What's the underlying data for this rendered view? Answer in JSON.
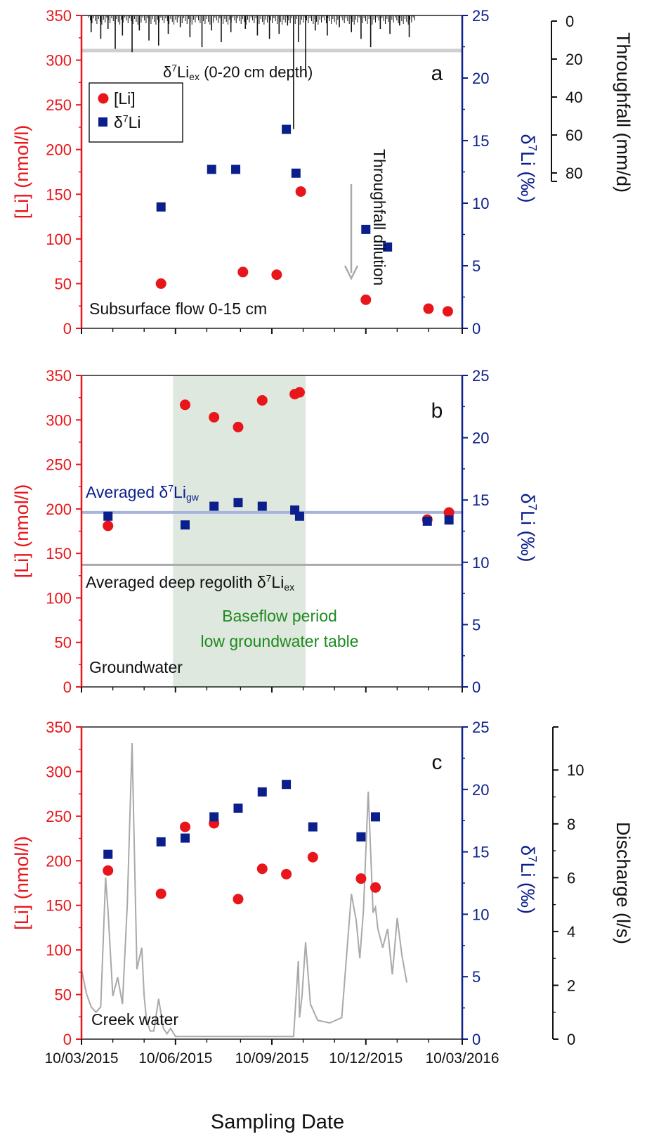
{
  "colors": {
    "li": "#e8161b",
    "d7": "#0b1f8c",
    "black": "#111111",
    "gray": "#a9a9a9",
    "lightgray": "#cfcfcf",
    "blueline": "#a9b4dd",
    "shade": "#dfe8df",
    "green": "#1e8a1e"
  },
  "x_axis": {
    "tick_labels": [
      "10/03/2015",
      "10/06/2015",
      "10/09/2015",
      "10/12/2015",
      "10/03/2016"
    ],
    "label": "Sampling Date"
  },
  "chart_data": [
    {
      "type": "scatter",
      "panel": "a",
      "panel_label": "a",
      "left_axis": {
        "label": "[Li] (nmol/l)",
        "ticks": [
          "0",
          "50",
          "100",
          "150",
          "200",
          "250",
          "300",
          "350"
        ],
        "ylim": [
          0,
          350
        ]
      },
      "right_axis": {
        "label_main": "δ",
        "label_sup": "7",
        "label_rest": "Li (‰)",
        "ticks": [
          "0",
          "5",
          "10",
          "15",
          "20",
          "25"
        ],
        "ylim": [
          0,
          25
        ]
      },
      "far_right_axis": {
        "label": "Throughfall (mm/d)",
        "ticks": [
          "0",
          "20",
          "40",
          "60",
          "80"
        ],
        "ylim": [
          0,
          80
        ]
      },
      "legend": {
        "li_label": "[Li]",
        "d7_main": "δ",
        "d7_sup": "7",
        "d7_rest": "Li"
      },
      "annotations": {
        "ref_main": "δ",
        "ref_sup": "7",
        "ref_mid": "Li",
        "ref_sub": "ex",
        "ref_rest": " (0-20 cm depth)",
        "dilution": "Throughfall dilution",
        "site": "Subsurface flow 0-15 cm"
      },
      "ref_line_d7": 22.2,
      "series": [
        {
          "name": "[Li]",
          "axis": "left",
          "x": [
            3.3,
            6.7,
            8.1,
            9.1,
            11.8,
            14.4,
            15.2
          ],
          "y": [
            50,
            63,
            60,
            153,
            32,
            22,
            19
          ]
        },
        {
          "name": "δ7Li",
          "axis": "right",
          "x": [
            3.3,
            5.4,
            6.4,
            8.5,
            8.9,
            11.8,
            12.7
          ],
          "y": [
            9.7,
            12.7,
            12.7,
            15.9,
            12.4,
            7.9,
            6.5
          ]
        }
      ]
    },
    {
      "type": "scatter",
      "panel": "b",
      "panel_label": "b",
      "left_axis": {
        "label": "[Li] (nmol/l)",
        "ticks": [
          "0",
          "50",
          "100",
          "150",
          "200",
          "250",
          "300",
          "350"
        ],
        "ylim": [
          0,
          350
        ]
      },
      "right_axis": {
        "label_main": "δ",
        "label_sup": "7",
        "label_rest": "Li (‰)",
        "ticks": [
          "0",
          "5",
          "10",
          "15",
          "20",
          "25"
        ],
        "ylim": [
          0,
          25
        ]
      },
      "annotations": {
        "gw_main": "Averaged δ",
        "gw_sup": "7",
        "gw_mid": "Li",
        "gw_sub": "gw",
        "deep_main": "Averaged deep regolith δ",
        "deep_sup": "7",
        "deep_mid": "Li",
        "deep_sub": "ex",
        "baseflow_1": "Baseflow period",
        "baseflow_2": "low groundwater table",
        "site": "Groundwater"
      },
      "ref_line_gw_d7": 14.0,
      "ref_line_deep_d7": 9.8,
      "shade_x_range": [
        3.8,
        9.3
      ],
      "series": [
        {
          "name": "[Li]",
          "axis": "left",
          "x": [
            1.1,
            4.3,
            5.5,
            6.5,
            7.5,
            8.85,
            9.05,
            14.35,
            15.25
          ],
          "y": [
            181,
            317,
            303,
            292,
            322,
            329,
            331,
            188,
            196
          ]
        },
        {
          "name": "δ7Li",
          "axis": "right",
          "x": [
            1.1,
            4.3,
            5.5,
            6.5,
            7.5,
            8.85,
            9.05,
            14.35,
            15.25
          ],
          "y": [
            13.7,
            13.0,
            14.5,
            14.8,
            14.5,
            14.2,
            13.7,
            13.3,
            13.4
          ]
        }
      ]
    },
    {
      "type": "scatter",
      "panel": "c",
      "panel_label": "c",
      "left_axis": {
        "label": "[Li] (nmol/l)",
        "ticks": [
          "0",
          "50",
          "100",
          "150",
          "200",
          "250",
          "300",
          "350"
        ],
        "ylim": [
          0,
          350
        ]
      },
      "right_axis": {
        "label_main": "δ",
        "label_sup": "7",
        "label_rest": "Li (‰)",
        "ticks": [
          "0",
          "5",
          "10",
          "15",
          "20",
          "25"
        ],
        "ylim": [
          0,
          25
        ]
      },
      "far_right_axis": {
        "label": "Discharge (l/s)",
        "ticks": [
          "0",
          "2",
          "4",
          "6",
          "8",
          "10"
        ],
        "ylim": [
          0,
          11.6
        ]
      },
      "annotations": {
        "site": "Creek water"
      },
      "series": [
        {
          "name": "[Li]",
          "axis": "left",
          "x": [
            1.1,
            3.3,
            4.3,
            5.5,
            6.5,
            7.5,
            8.5,
            9.6,
            11.6,
            12.2
          ],
          "y": [
            189,
            163,
            238,
            242,
            157,
            191,
            185,
            204,
            180,
            170
          ]
        },
        {
          "name": "δ7Li",
          "axis": "right",
          "x": [
            1.1,
            3.3,
            4.3,
            5.5,
            6.5,
            7.5,
            8.5,
            9.6,
            11.6,
            12.2
          ],
          "y": [
            14.8,
            15.8,
            16.1,
            17.8,
            18.5,
            19.8,
            20.4,
            17.0,
            16.2,
            17.8
          ]
        },
        {
          "name": "Discharge",
          "axis": "far_right",
          "x": [
            0,
            0.2,
            0.4,
            0.6,
            0.8,
            1.0,
            1.1,
            1.3,
            1.5,
            1.7,
            1.9,
            2.1,
            2.3,
            2.5,
            2.6,
            2.7,
            2.85,
            3.0,
            3.2,
            3.4,
            3.55,
            3.7,
            3.9,
            4.1,
            4.5,
            5.0,
            6.0,
            7.0,
            8.0,
            8.8,
            9.0,
            9.05,
            9.15,
            9.3,
            9.5,
            9.8,
            10.3,
            10.8,
            11.2,
            11.4,
            11.55,
            11.7,
            11.9,
            12.1,
            12.2,
            12.3,
            12.5,
            12.7,
            12.9,
            13.1,
            13.3,
            13.5
          ],
          "y": [
            2.6,
            1.7,
            1.2,
            1.0,
            1.2,
            6.0,
            4.8,
            1.6,
            2.3,
            1.3,
            5.0,
            11.0,
            2.6,
            3.4,
            1.6,
            0.7,
            0.3,
            0.3,
            1.5,
            0.4,
            0.2,
            0.4,
            0.1,
            0.1,
            0.1,
            0.1,
            0.1,
            0.1,
            0.1,
            0.1,
            2.9,
            0.8,
            1.6,
            3.6,
            1.3,
            0.7,
            0.6,
            0.8,
            5.4,
            4.4,
            3.0,
            4.8,
            9.2,
            4.7,
            4.9,
            4.1,
            3.4,
            4.1,
            2.4,
            4.5,
            3.1,
            2.1
          ]
        }
      ]
    }
  ],
  "throughfall": {
    "x": [
      0.4,
      0.8,
      1.1,
      1.4,
      1.7,
      2.1,
      2.4,
      2.8,
      3.2,
      3.6,
      4.1,
      4.5,
      5.0,
      5.4,
      5.8,
      6.2,
      6.8,
      7.3,
      7.8,
      8.2,
      8.55,
      8.8,
      9.0,
      9.3,
      9.7,
      10.2,
      10.7,
      11.2,
      11.6,
      12.0,
      12.4,
      12.8,
      13.2,
      13.6
    ],
    "y": [
      10,
      14,
      8,
      20,
      12,
      22,
      9,
      15,
      18,
      11,
      7,
      13,
      19,
      9,
      16,
      10,
      8,
      12,
      14,
      11,
      6,
      68,
      16,
      37,
      9,
      12,
      7,
      10,
      14,
      19,
      8,
      11,
      6,
      13
    ]
  }
}
